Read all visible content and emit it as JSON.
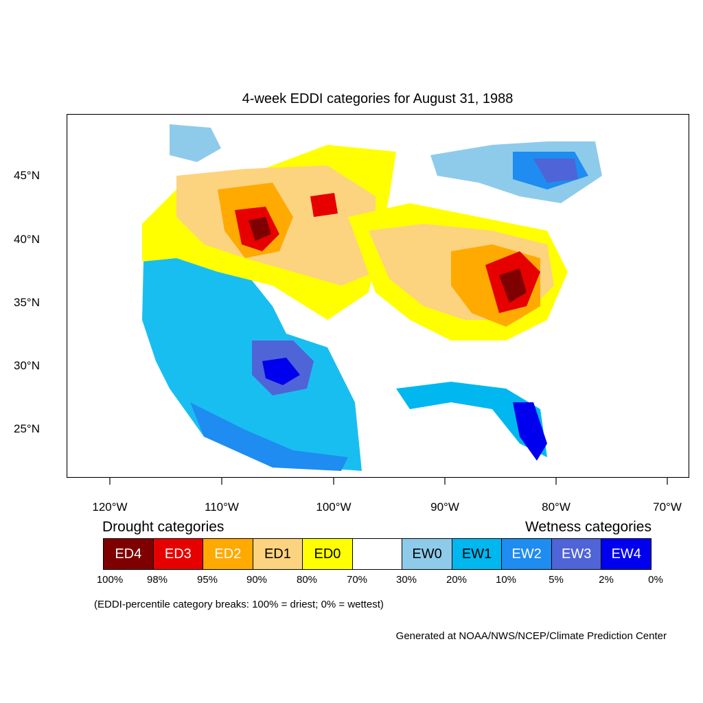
{
  "title": "4-week EDDI categories for August 31, 1988",
  "lat_labels": [
    "45°N",
    "40°N",
    "35°N",
    "30°N",
    "25°N"
  ],
  "lon_labels": [
    "120°W",
    "110°W",
    "100°W",
    "90°W",
    "80°W",
    "70°W"
  ],
  "legend": {
    "drought_heading": "Drought categories",
    "wetness_heading": "Wetness categories",
    "categories": [
      {
        "label": "ED4",
        "color": "#7f0000",
        "text_color": "#ffffff"
      },
      {
        "label": "ED3",
        "color": "#e60000",
        "text_color": "#ffffff"
      },
      {
        "label": "ED2",
        "color": "#ffaa00",
        "text_color": "#ffffff"
      },
      {
        "label": "ED1",
        "color": "#fcd37f",
        "text_color": "#000000"
      },
      {
        "label": "ED0",
        "color": "#ffff00",
        "text_color": "#000000"
      },
      {
        "label": "",
        "color": "#ffffff",
        "text_color": "#000000"
      },
      {
        "label": "EW0",
        "color": "#8ecbeb",
        "text_color": "#000000"
      },
      {
        "label": "EW1",
        "color": "#00b7ef",
        "text_color": "#000000"
      },
      {
        "label": "EW2",
        "color": "#1e8cf0",
        "text_color": "#ffffff"
      },
      {
        "label": "EW3",
        "color": "#4f64d6",
        "text_color": "#ffffff"
      },
      {
        "label": "EW4",
        "color": "#0000ef",
        "text_color": "#ffffff"
      }
    ],
    "breaks": [
      "100%",
      "98%",
      "95%",
      "90%",
      "80%",
      "70%",
      "30%",
      "20%",
      "10%",
      "5%",
      "2%",
      "0%"
    ]
  },
  "note": "(EDDI-percentile category breaks: 100% = driest; 0% = wettest)",
  "credit": "Generated at NOAA/NWS/NCEP/Climate Prediction Center"
}
